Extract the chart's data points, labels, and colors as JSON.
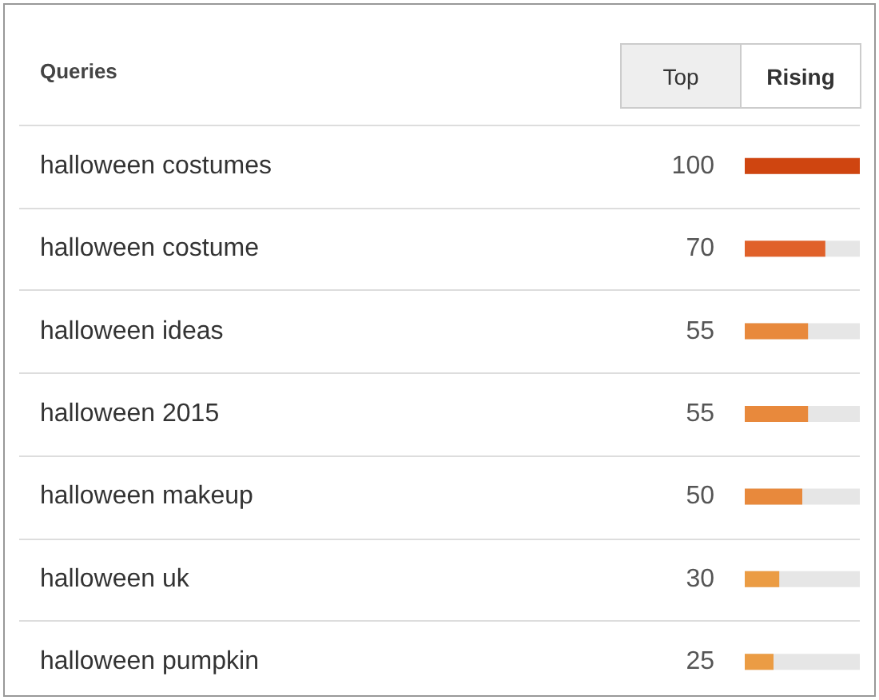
{
  "chart_data": {
    "type": "bar",
    "orientation": "horizontal",
    "title": "Queries",
    "annotations": [
      "Top",
      "Rising"
    ],
    "categories": [
      "halloween costumes",
      "halloween costume",
      "halloween ideas",
      "halloween 2015",
      "halloween makeup",
      "halloween uk",
      "halloween pumpkin"
    ],
    "values": [
      100,
      70,
      55,
      55,
      50,
      30,
      25
    ],
    "colors": [
      "#cf4510",
      "#e0612a",
      "#e8893c",
      "#e8893c",
      "#e8893c",
      "#eb9c44",
      "#eb9c44"
    ],
    "data_labels": true
  }
}
